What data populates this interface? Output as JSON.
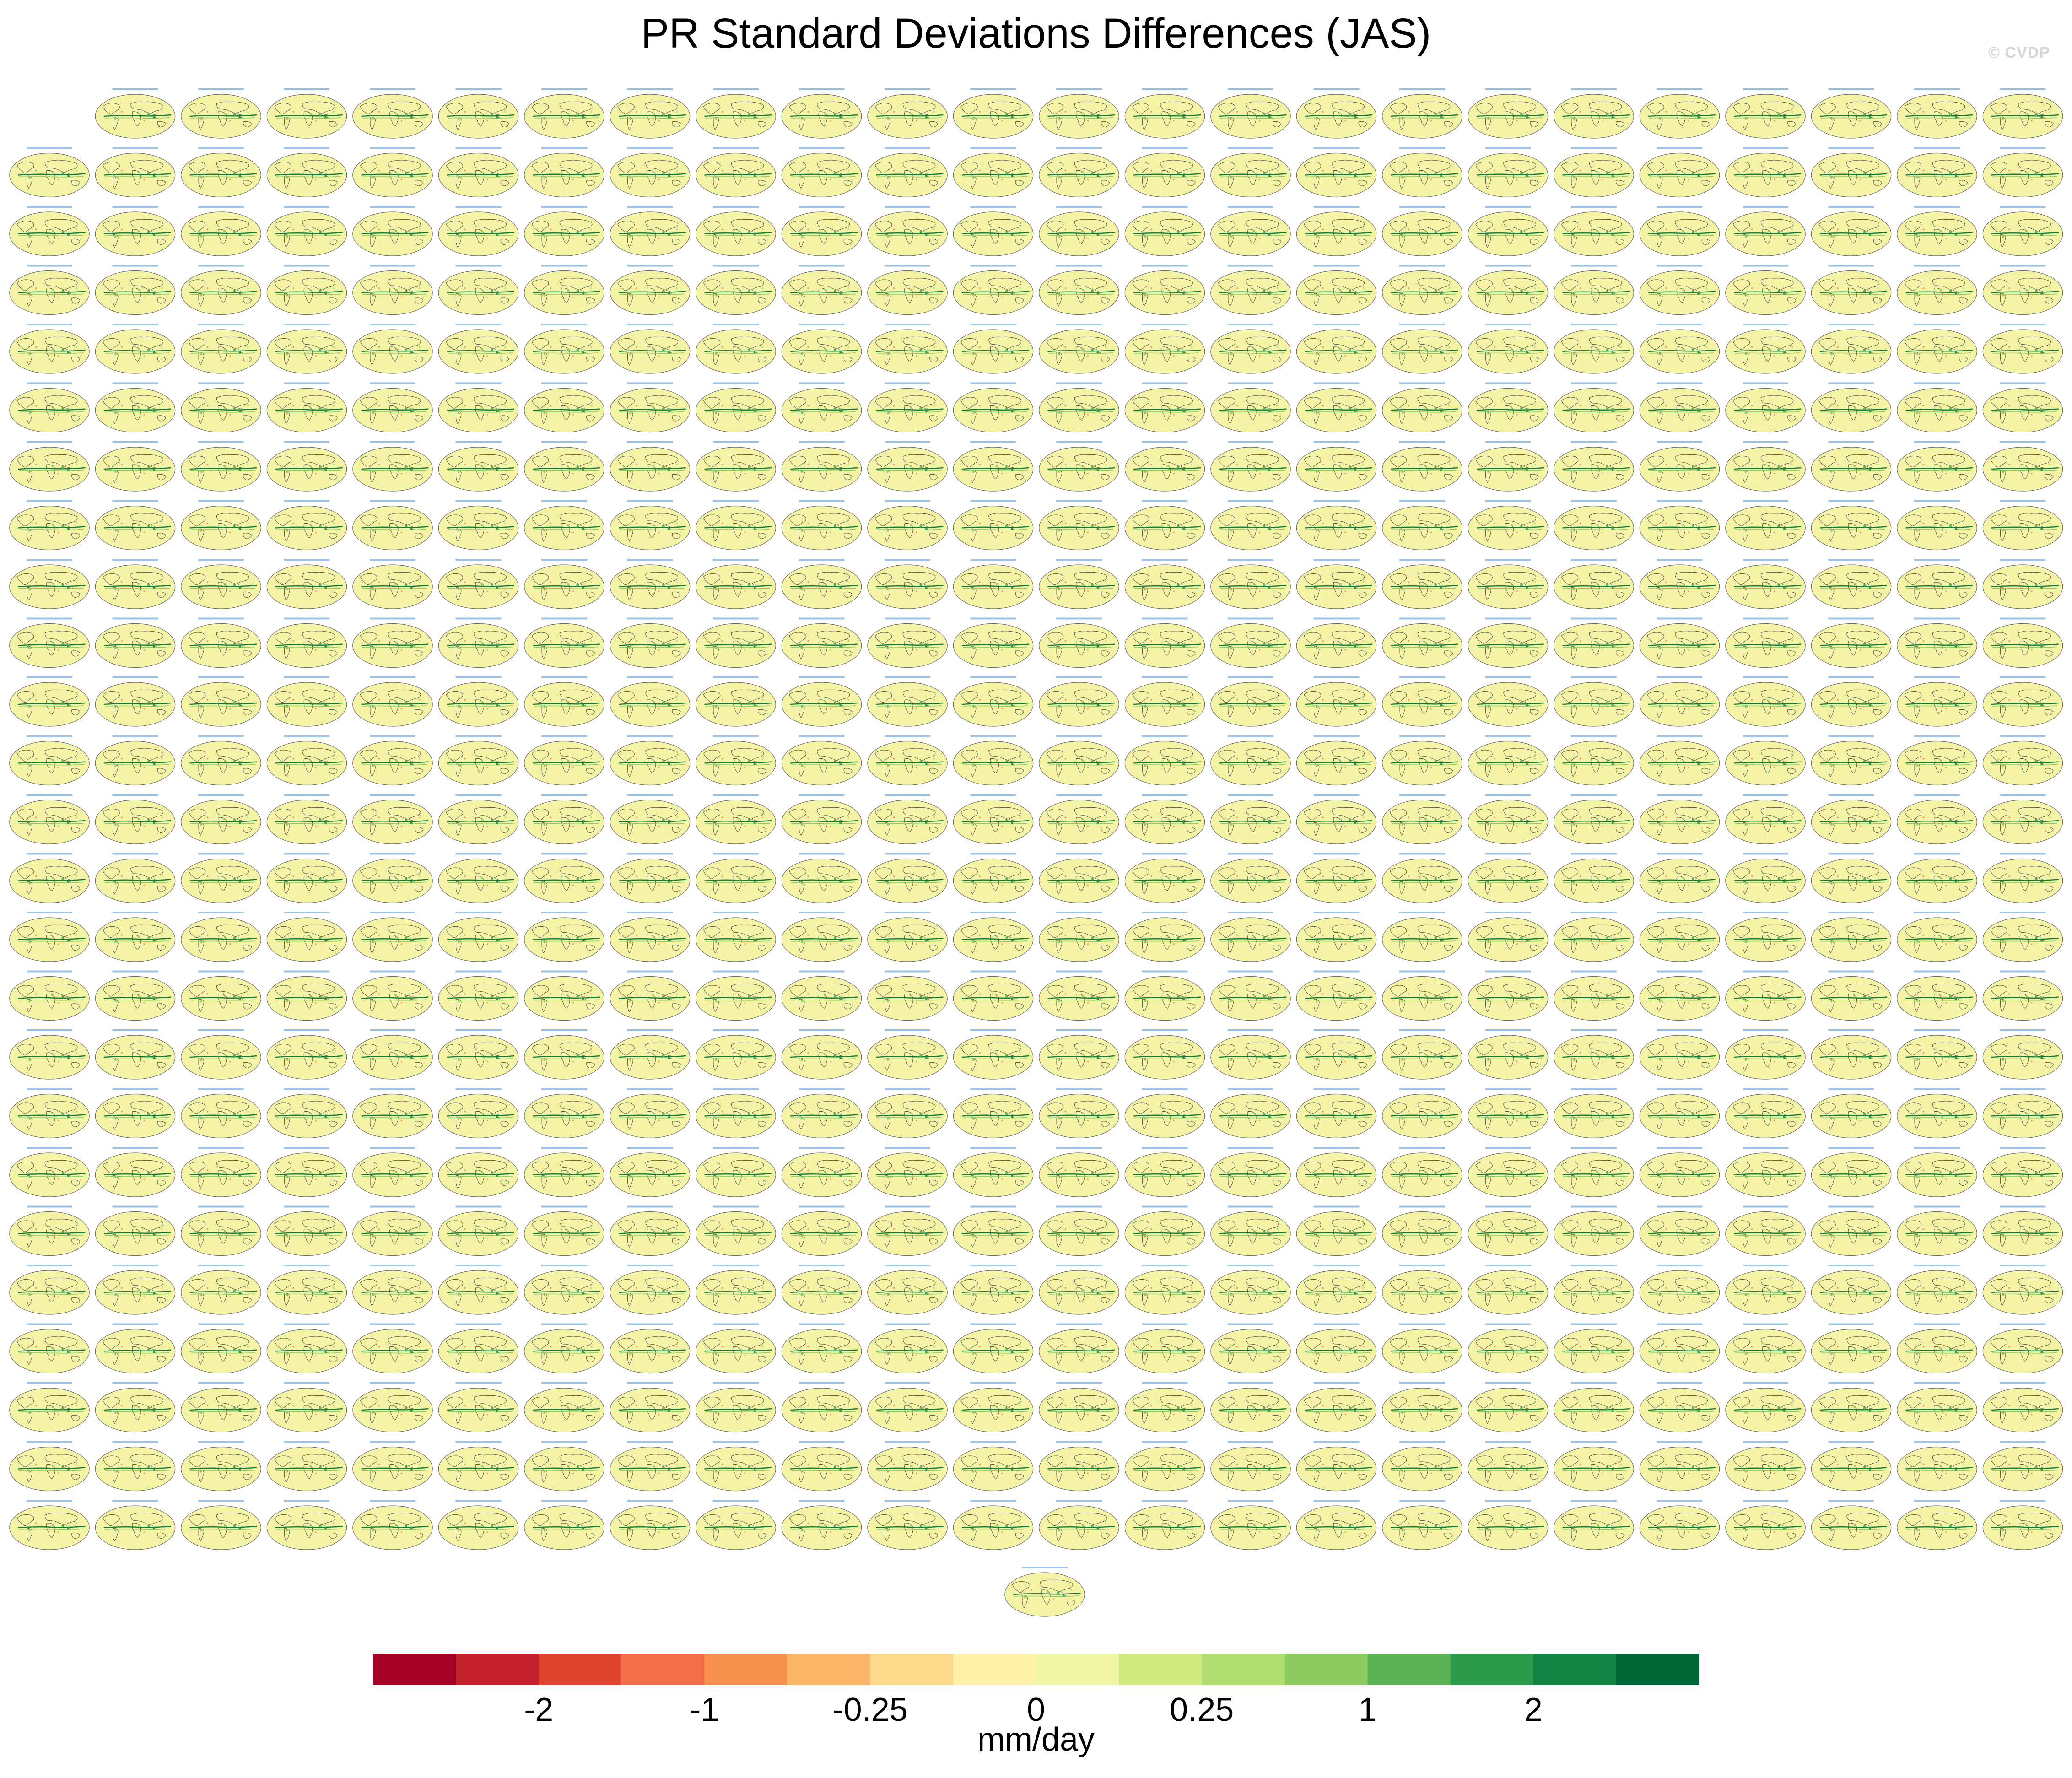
{
  "title": "PR Standard Deviations Differences (JAS)",
  "watermark": "© CVDP",
  "colors": {
    "ocean": "#f5f3a6",
    "land_outline": "#4a4a4a",
    "panel_title": "#4b8fd6",
    "positive_strong": "#107b38",
    "positive_weak": "#8ccb5f",
    "negative_weak": "#f3906b"
  },
  "chart_data": {
    "type": "heatmap",
    "title": "PR Standard Deviations Differences (JAS)",
    "panels": {
      "rows": [
        23,
        24,
        24,
        24,
        24,
        24,
        24,
        24,
        24,
        24,
        24,
        24,
        24,
        24,
        24,
        24,
        24,
        24,
        24,
        24,
        24,
        24,
        24,
        24,
        24,
        1
      ],
      "projection": "robinson-global-map"
    },
    "colorbar": {
      "units": "mm/day",
      "levels": [
        -4,
        -3,
        -2,
        -1.5,
        -1,
        -0.5,
        -0.25,
        -0.1,
        0,
        0.1,
        0.25,
        0.5,
        1,
        1.5,
        2,
        3,
        4
      ],
      "tick_labels": [
        "-2",
        "-1",
        "-0.25",
        "0",
        "0.25",
        "1",
        "2"
      ],
      "tick_values": [
        -2,
        -1,
        -0.25,
        0,
        0.25,
        1,
        2
      ],
      "colors": [
        "#a50026",
        "#c4202a",
        "#e0452f",
        "#f26e46",
        "#f9924f",
        "#fbb568",
        "#fdd88a",
        "#fef0a6",
        "#eff7a5",
        "#cfe97e",
        "#b2dd72",
        "#8ccb5f",
        "#5cb257",
        "#2e9b4c",
        "#0f8443",
        "#006837"
      ]
    }
  }
}
